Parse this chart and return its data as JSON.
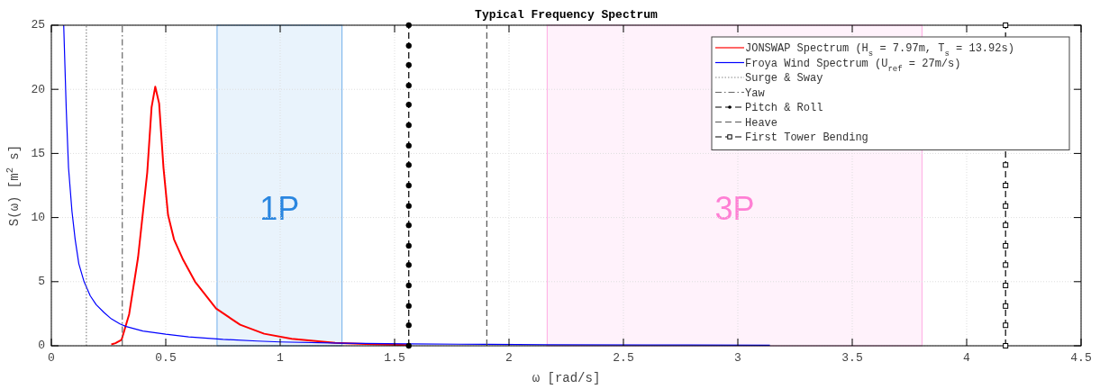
{
  "chart_data": {
    "type": "line",
    "title": "Typical Frequency Spectrum",
    "xlabel": "ω [rad/s]",
    "ylabel": "S(ω) [m$^{2}$ s]",
    "xlim": [
      0,
      4.5
    ],
    "ylim": [
      0,
      25
    ],
    "xticks": [
      0,
      0.5,
      1,
      1.5,
      2,
      2.5,
      3,
      3.5,
      4,
      4.5
    ],
    "yticks": [
      0,
      5,
      10,
      15,
      20,
      25
    ],
    "grid": true,
    "legend": "top right",
    "series": [
      {
        "name": "JONSWAP Spectrum (H$_{s}$ = 7.97m,  T$_{s}$ = 13.92s)",
        "color": "#ff0000",
        "line_style": "solid",
        "marker": "none",
        "x": [
          0.262,
          0.28,
          0.307,
          0.34,
          0.379,
          0.419,
          0.438,
          0.454,
          0.471,
          0.49,
          0.51,
          0.536,
          0.576,
          0.628,
          0.72,
          0.825,
          0.93,
          1.05,
          1.24,
          1.4,
          1.57
        ],
        "values": [
          0.1,
          0.2,
          0.47,
          2.46,
          6.9,
          13.5,
          18.6,
          20.2,
          18.9,
          13.9,
          10.2,
          8.3,
          6.7,
          5.0,
          2.9,
          1.64,
          0.94,
          0.54,
          0.23,
          0.12,
          0.05
        ]
      },
      {
        "name": "Froya Wind Spectrum (U$_{ref}$ = 27m/s)",
        "color": "#0000ff",
        "line_style": "solid",
        "marker": "none",
        "x": [
          0.054,
          0.065,
          0.075,
          0.09,
          0.104,
          0.12,
          0.143,
          0.17,
          0.196,
          0.23,
          0.262,
          0.3,
          0.327,
          0.4,
          0.5,
          0.6,
          0.75,
          0.9,
          1.0,
          1.27,
          1.56,
          1.9,
          2.17,
          2.6,
          3.14
        ],
        "values": [
          25,
          18.5,
          13.9,
          10.5,
          8.3,
          6.4,
          5.0,
          3.9,
          3.2,
          2.6,
          2.1,
          1.7,
          1.5,
          1.15,
          0.9,
          0.7,
          0.5,
          0.37,
          0.3,
          0.2,
          0.15,
          0.11,
          0.08,
          0.06,
          0.05
        ]
      },
      {
        "name": "Surge & Sway",
        "color": "#888888",
        "line_style": "dotted",
        "marker": "none",
        "x": [
          0.153,
          0.153
        ],
        "values": [
          0,
          25
        ]
      },
      {
        "name": "Yaw",
        "color": "#666666",
        "line_style": "dashdot",
        "marker": "none",
        "x": [
          0.31,
          0.31
        ],
        "values": [
          0,
          25
        ]
      },
      {
        "name": "Pitch & Roll",
        "color": "#000000",
        "line_style": "dashed",
        "marker": "circle",
        "x": [
          1.562,
          1.562,
          1.562,
          1.562,
          1.562,
          1.562,
          1.562,
          1.562,
          1.562,
          1.562,
          1.562,
          1.562,
          1.562,
          1.562,
          1.562,
          1.562,
          1.562
        ],
        "values": [
          0,
          1.6,
          3.1,
          4.7,
          6.3,
          7.8,
          9.4,
          10.9,
          12.5,
          14.1,
          15.6,
          17.2,
          18.8,
          20.3,
          21.9,
          23.4,
          25
        ]
      },
      {
        "name": "Heave",
        "color": "#555555",
        "line_style": "dashed",
        "marker": "none",
        "x": [
          1.903,
          1.903
        ],
        "values": [
          0,
          25
        ]
      },
      {
        "name": "First Tower Bending",
        "color": "#000000",
        "line_style": "dashed",
        "marker": "square",
        "x": [
          4.17,
          4.17,
          4.17,
          4.17,
          4.17,
          4.17,
          4.17,
          4.17,
          4.17,
          4.17,
          4.17
        ],
        "values": [
          0,
          1.6,
          3.1,
          4.7,
          6.3,
          7.8,
          9.4,
          10.9,
          12.5,
          14.1,
          25
        ]
      }
    ],
    "bands": [
      {
        "axis": "x",
        "from": 0.724,
        "to": 1.27,
        "label": "1P",
        "color": "#2a86e0"
      },
      {
        "axis": "x",
        "from": 2.167,
        "to": 3.805,
        "label": "3P",
        "color": "#ff7fd4"
      }
    ]
  }
}
